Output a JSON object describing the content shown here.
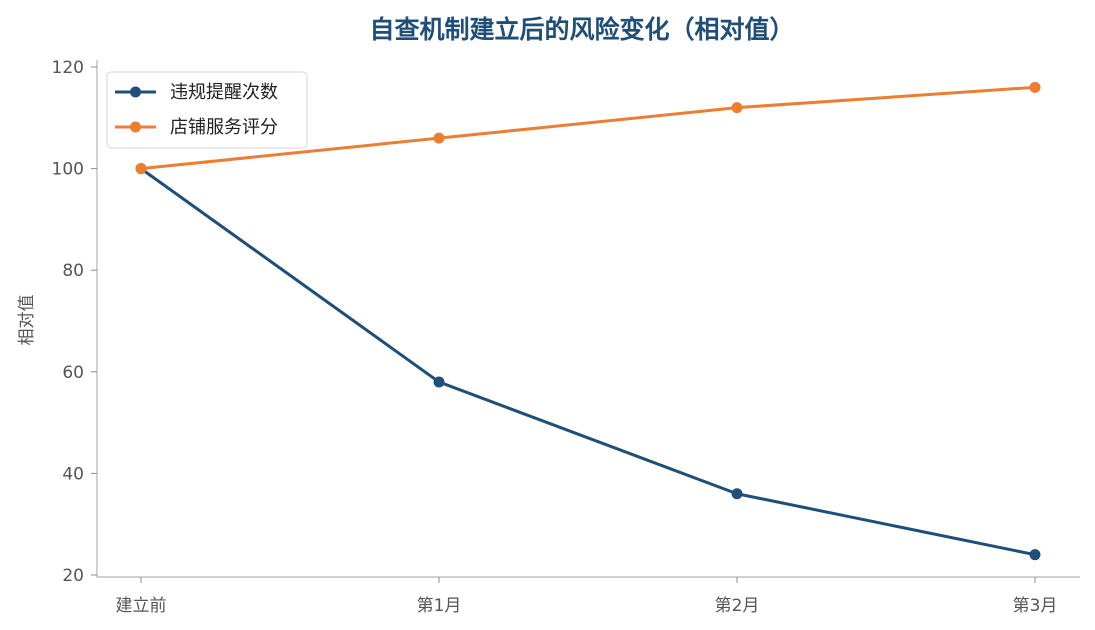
{
  "chart_data": {
    "type": "line",
    "title": "自查机制建立后的风险变化（相对值）",
    "xlabel": "",
    "ylabel": "相对值",
    "categories": [
      "建立前",
      "第1月",
      "第2月",
      "第3月"
    ],
    "yticks": [
      20,
      40,
      60,
      80,
      100,
      120
    ],
    "ylim": [
      20,
      120
    ],
    "grid": false,
    "legend_position": "top-left",
    "series": [
      {
        "name": "违规提醒次数",
        "color": "#1f4e79",
        "values": [
          100,
          58,
          36,
          24
        ]
      },
      {
        "name": "店铺服务评分",
        "color": "#ed7d31",
        "values": [
          100,
          106,
          112,
          116
        ]
      }
    ]
  }
}
